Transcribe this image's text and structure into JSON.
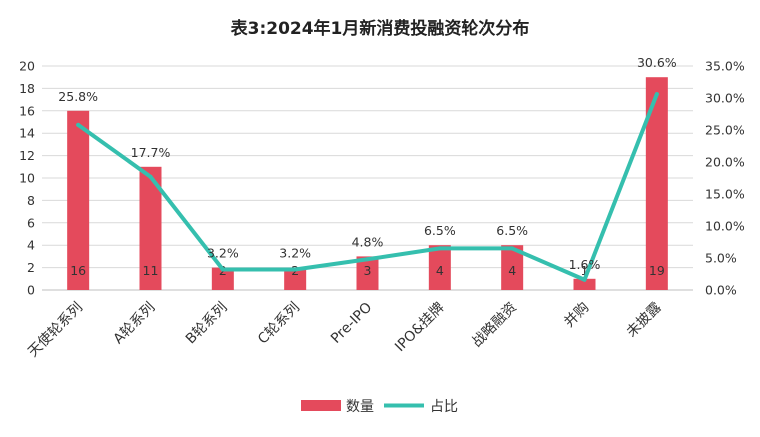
{
  "chart_data": {
    "type": "bar",
    "title": "表3:2024年1月新消费投融资轮次分布",
    "categories": [
      "天使轮系列",
      "A轮系列",
      "B轮系列",
      "C轮系列",
      "Pre-IPO",
      "IPO&挂牌",
      "战略融资",
      "并购",
      "未披露"
    ],
    "series": [
      {
        "name": "数量",
        "type": "bar",
        "axis": "left",
        "color": "#e44a5c",
        "values": [
          16,
          11,
          2,
          2,
          3,
          4,
          4,
          1,
          19
        ],
        "labels": [
          "16",
          "11",
          "2",
          "2",
          "3",
          "4",
          "4",
          "1",
          "19"
        ]
      },
      {
        "name": "占比",
        "type": "line",
        "axis": "right",
        "color": "#35bfae",
        "values": [
          25.8,
          17.7,
          3.2,
          3.2,
          4.8,
          6.5,
          6.5,
          1.6,
          30.6
        ],
        "labels": [
          "25.8%",
          "17.7%",
          "3.2%",
          "3.2%",
          "4.8%",
          "6.5%",
          "6.5%",
          "1.6%",
          "30.6%"
        ]
      }
    ],
    "ylim": [
      0,
      20
    ],
    "y_ticks": [
      "0",
      "2",
      "4",
      "6",
      "8",
      "10",
      "12",
      "14",
      "16",
      "18",
      "20"
    ],
    "y2lim": [
      0,
      35
    ],
    "y2_ticks": [
      "0.0%",
      "5.0%",
      "10.0%",
      "15.0%",
      "20.0%",
      "25.0%",
      "30.0%",
      "35.0%"
    ],
    "grid": true,
    "legend": "bottom"
  }
}
